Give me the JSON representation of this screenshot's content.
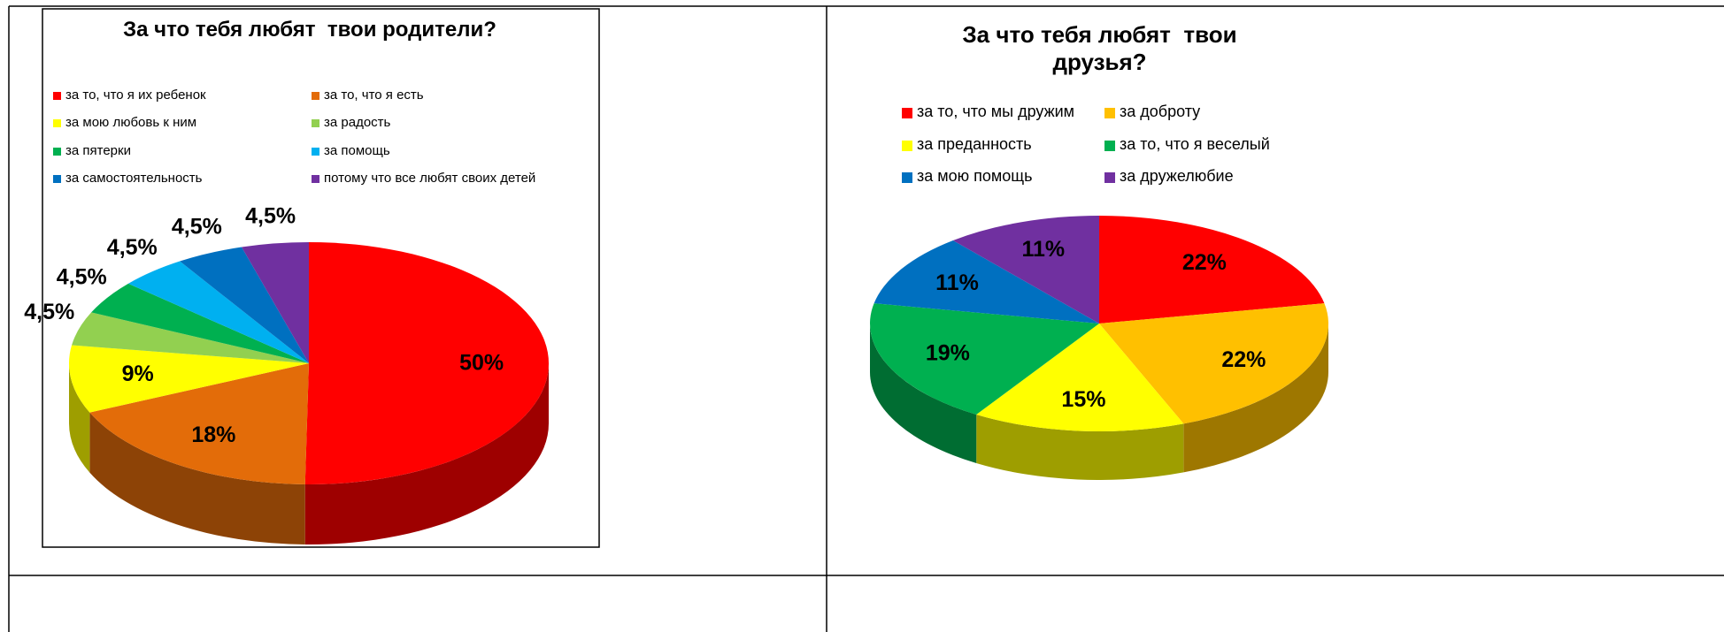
{
  "chart_data": [
    {
      "type": "pie3d",
      "title": "За что тебя любят  твои родители?",
      "categories": [
        "за то, что я их ребенок",
        "за то, что я есть",
        "за мою любовь к ним",
        "за радость",
        "за пятерки",
        "за помощь",
        "за самостоятельность",
        "потому что все любят своих детей"
      ],
      "values": [
        50,
        18,
        9,
        4.5,
        4.5,
        4.5,
        4.5,
        4.5
      ],
      "value_labels": [
        "50%",
        "18%",
        "9%",
        "4,5%",
        "4,5%",
        "4,5%",
        "4,5%",
        "4,5%"
      ],
      "colors": [
        "#ff0000",
        "#e36c09",
        "#ffff00",
        "#92d050",
        "#00b050",
        "#00b0f0",
        "#0070c0",
        "#7030a0"
      ]
    },
    {
      "type": "pie3d",
      "title": "За что тебя любят  твои друзья?",
      "categories": [
        "за то, что мы дружим",
        "за доброту",
        "за преданность",
        "за то, что я веселый",
        "за мою помощь",
        "за дружелюбие"
      ],
      "values": [
        22,
        22,
        15,
        19,
        11,
        11
      ],
      "value_labels": [
        "22%",
        "22%",
        "15%",
        "19%",
        "11%",
        "11%"
      ],
      "colors": [
        "#ff0000",
        "#ffc000",
        "#ffff00",
        "#00b050",
        "#0070c0",
        "#7030a0"
      ]
    }
  ]
}
